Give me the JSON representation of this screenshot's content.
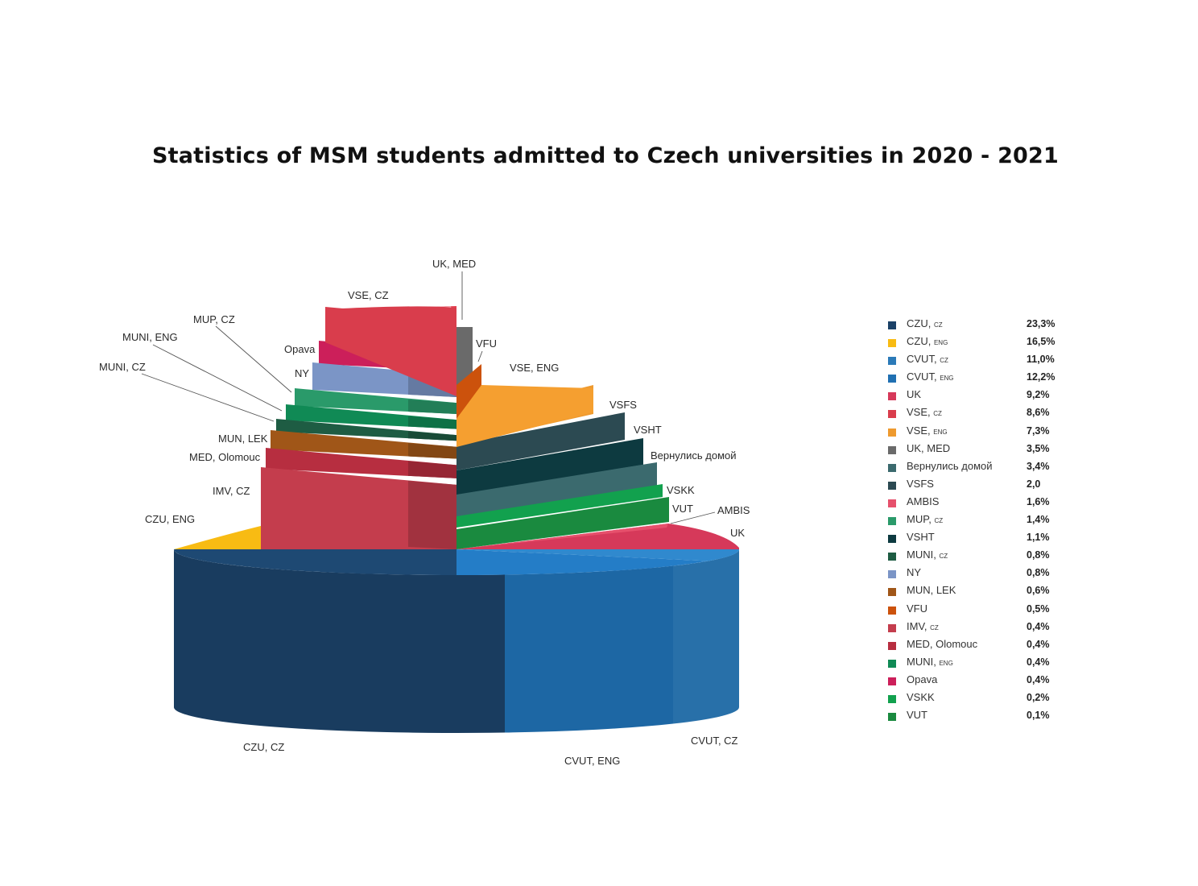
{
  "title": "Statistics of MSM students admitted to Czech universities in 2020 - 2021",
  "chart_data": {
    "type": "pie",
    "style": "3d-exploded",
    "title": "Statistics of MSM students admitted to Czech universities in 2020 - 2021",
    "legend_placement": "right",
    "slices": [
      {
        "key": "czu_cz",
        "label": "CZU, CZ",
        "legend_main": "CZU,",
        "legend_sub": "CZ",
        "value_text": "23,3%",
        "value": 23.3,
        "color": "#1b4167"
      },
      {
        "key": "czu_eng",
        "label": "CZU, ENG",
        "legend_main": "CZU,",
        "legend_sub": "ENG",
        "value_text": "16,5%",
        "value": 16.5,
        "color": "#f8bb13"
      },
      {
        "key": "cvut_cz",
        "label": "CVUT, CZ",
        "legend_main": "CVUT,",
        "legend_sub": "CZ",
        "value_text": "11,0%",
        "value": 11.0,
        "color": "#2b7ab8"
      },
      {
        "key": "cvut_eng",
        "label": "CVUT, ENG",
        "legend_main": "CVUT,",
        "legend_sub": "ENG",
        "value_text": "12,2%",
        "value": 12.2,
        "color": "#2070b2"
      },
      {
        "key": "uk",
        "label": "UK",
        "legend_main": "UK",
        "legend_sub": "",
        "value_text": "9,2%",
        "value": 9.2,
        "color": "#d6395a"
      },
      {
        "key": "vse_cz",
        "label": "VSE, CZ",
        "legend_main": "VSE,",
        "legend_sub": "CZ",
        "value_text": "8,6%",
        "value": 8.6,
        "color": "#d93d4c"
      },
      {
        "key": "vse_eng",
        "label": "VSE, ENG",
        "legend_main": "VSE,",
        "legend_sub": "ENG",
        "value_text": "7,3%",
        "value": 7.3,
        "color": "#ee9a2f"
      },
      {
        "key": "uk_med",
        "label": "UK, MED",
        "legend_main": "UK, MED",
        "legend_sub": "",
        "value_text": "3,5%",
        "value": 3.5,
        "color": "#6a6a6a"
      },
      {
        "key": "home",
        "label": "Вернулись домой",
        "legend_main": "Вернулись домой",
        "legend_sub": "",
        "value_text": "3,4%",
        "value": 3.4,
        "color": "#3b6a6e"
      },
      {
        "key": "vsfs",
        "label": "VSFS",
        "legend_main": "VSFS",
        "legend_sub": "",
        "value_text": "2,0",
        "value": 2.0,
        "color": "#2c4a52"
      },
      {
        "key": "ambis",
        "label": "AMBIS",
        "legend_main": "AMBIS",
        "legend_sub": "",
        "value_text": "1,6%",
        "value": 1.6,
        "color": "#e6506c"
      },
      {
        "key": "mup_cz",
        "label": "MUP, CZ",
        "legend_main": "MUP,",
        "legend_sub": "CZ",
        "value_text": "1,4%",
        "value": 1.4,
        "color": "#2a9a6a"
      },
      {
        "key": "vsht",
        "label": "VSHT",
        "legend_main": "VSHT",
        "legend_sub": "",
        "value_text": "1,1%",
        "value": 1.1,
        "color": "#0d3a40"
      },
      {
        "key": "muni_cz",
        "label": "MUNI, CZ",
        "legend_main": "MUNI,",
        "legend_sub": "CZ",
        "value_text": "0,8%",
        "value": 0.8,
        "color": "#1e5c43"
      },
      {
        "key": "ny",
        "label": "NY",
        "legend_main": "NY",
        "legend_sub": "",
        "value_text": "0,8%",
        "value": 0.8,
        "color": "#7b95c6"
      },
      {
        "key": "mun_lek",
        "label": "MUN, LEK",
        "legend_main": "MUN, LEK",
        "legend_sub": "",
        "value_text": "0,6%",
        "value": 0.6,
        "color": "#a05618"
      },
      {
        "key": "vfu",
        "label": "VFU",
        "legend_main": "VFU",
        "legend_sub": "",
        "value_text": "0,5%",
        "value": 0.5,
        "color": "#cc520c"
      },
      {
        "key": "imv_cz",
        "label": "IMV, CZ",
        "legend_main": "IMV,",
        "legend_sub": "CZ",
        "value_text": "0,4%",
        "value": 0.4,
        "color": "#c43d4d"
      },
      {
        "key": "med_olomouc",
        "label": "MED, Olomouc",
        "legend_main": "MED, Olomouc",
        "legend_sub": "",
        "value_text": "0,4%",
        "value": 0.4,
        "color": "#b72e40"
      },
      {
        "key": "muni_eng",
        "label": "MUNI, ENG",
        "legend_main": "MUNI,",
        "legend_sub": "ENG",
        "value_text": "0,4%",
        "value": 0.4,
        "color": "#108a55"
      },
      {
        "key": "opava",
        "label": "Opava",
        "legend_main": "Opava",
        "legend_sub": "",
        "value_text": "0,4%",
        "value": 0.4,
        "color": "#cc1f5a"
      },
      {
        "key": "vskk",
        "label": "VSKK",
        "legend_main": "VSKK",
        "legend_sub": "",
        "value_text": "0,2%",
        "value": 0.2,
        "color": "#12a14e"
      },
      {
        "key": "vut",
        "label": "VUT",
        "legend_main": "VUT",
        "legend_sub": "",
        "value_text": "0,1%",
        "value": 0.1,
        "color": "#1a8a3f"
      }
    ]
  }
}
